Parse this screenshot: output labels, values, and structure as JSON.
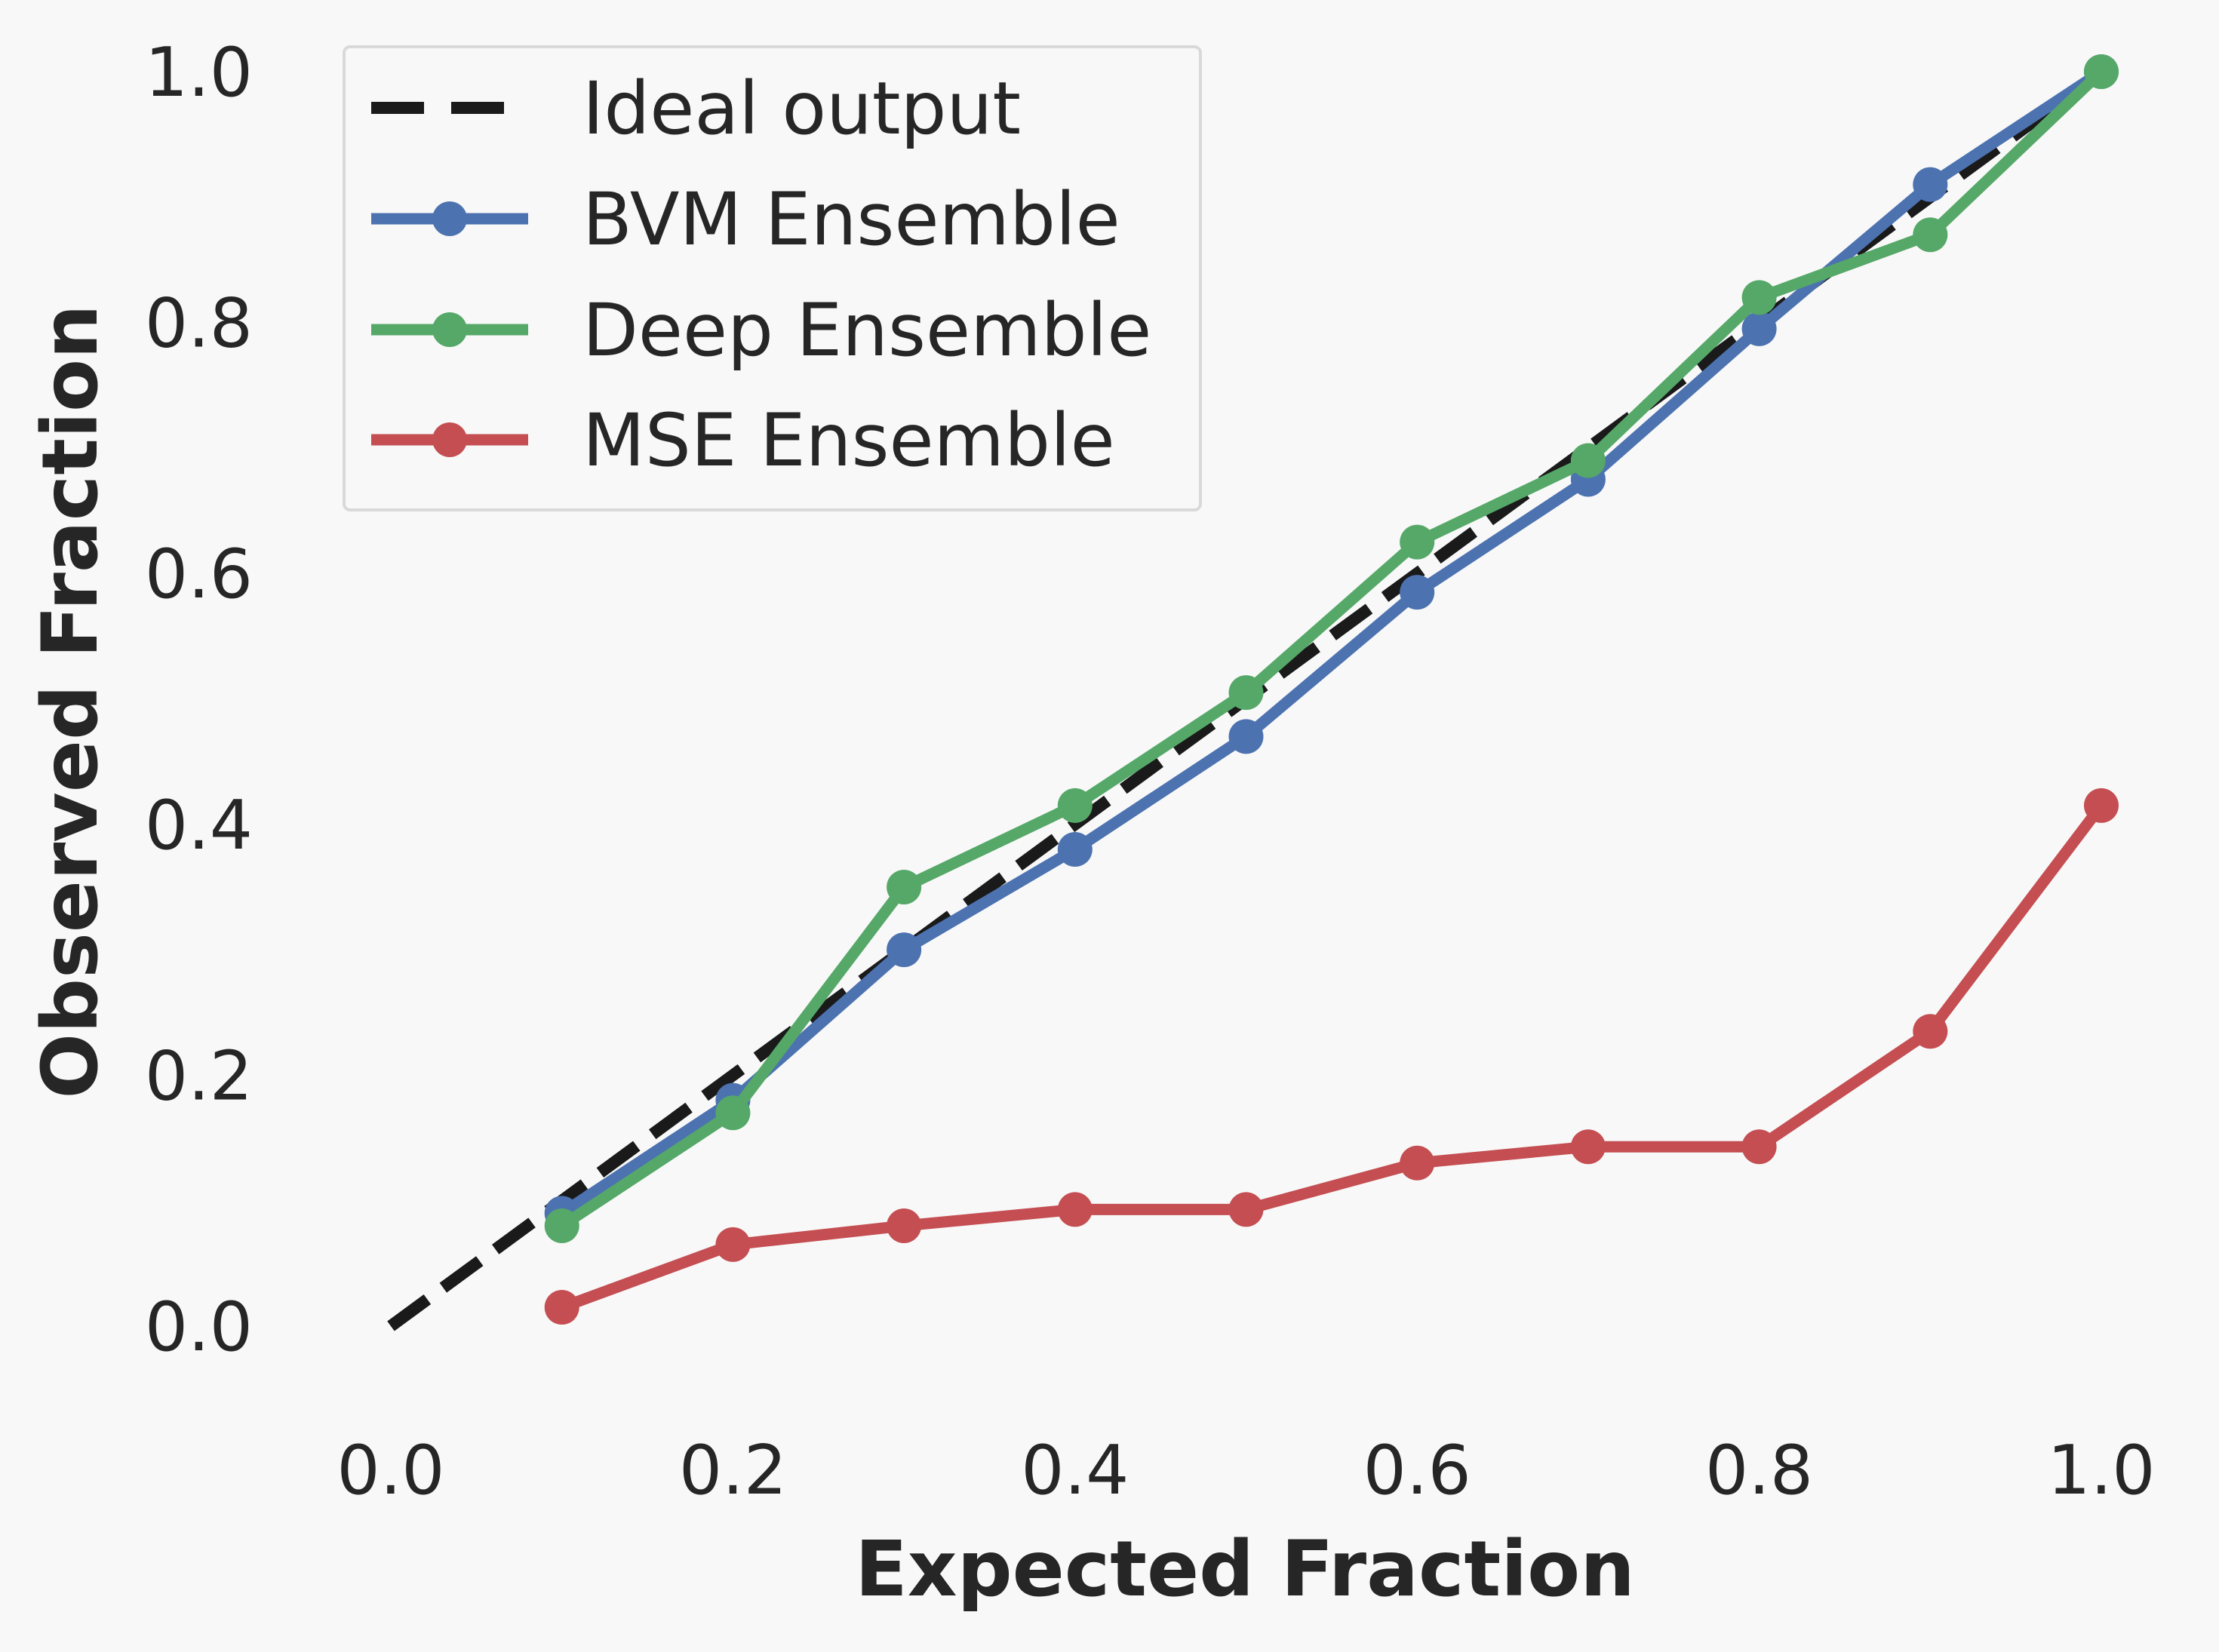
{
  "chart_data": {
    "type": "line",
    "xlabel": "Expected Fraction",
    "ylabel": "Observed Fraction",
    "xlim": [
      -0.025,
      1.025
    ],
    "ylim": [
      -0.035,
      1.025
    ],
    "xticks": [
      "0.0",
      "0.2",
      "0.4",
      "0.6",
      "0.8",
      "1.0"
    ],
    "yticks": [
      "0.0",
      "0.2",
      "0.4",
      "0.6",
      "0.8",
      "1.0"
    ],
    "grid": false,
    "legend_position": "top-left",
    "series": [
      {
        "name": "Ideal output",
        "style": "dashed",
        "color": "#1a1a1a",
        "x": [
          0.0,
          1.0
        ],
        "y": [
          0.0,
          1.0
        ]
      },
      {
        "name": "BVM Ensemble",
        "style": "solid-markers",
        "color": "#4c72b0",
        "x": [
          0.1,
          0.2,
          0.3,
          0.4,
          0.5,
          0.6,
          0.7,
          0.8,
          0.9,
          1.0
        ],
        "y": [
          0.09,
          0.18,
          0.3,
          0.38,
          0.47,
          0.585,
          0.675,
          0.795,
          0.91,
          1.0
        ]
      },
      {
        "name": "Deep Ensemble",
        "style": "solid-markers",
        "color": "#55a868",
        "x": [
          0.1,
          0.2,
          0.3,
          0.4,
          0.5,
          0.6,
          0.7,
          0.8,
          0.9,
          1.0
        ],
        "y": [
          0.08,
          0.17,
          0.35,
          0.415,
          0.505,
          0.625,
          0.69,
          0.82,
          0.87,
          1.0
        ]
      },
      {
        "name": "MSE Ensemble",
        "style": "solid-markers",
        "color": "#c44e52",
        "x": [
          0.1,
          0.2,
          0.3,
          0.4,
          0.5,
          0.6,
          0.7,
          0.8,
          0.9,
          1.0
        ],
        "y": [
          0.015,
          0.065,
          0.08,
          0.093,
          0.093,
          0.13,
          0.143,
          0.143,
          0.235,
          0.415
        ]
      }
    ]
  }
}
